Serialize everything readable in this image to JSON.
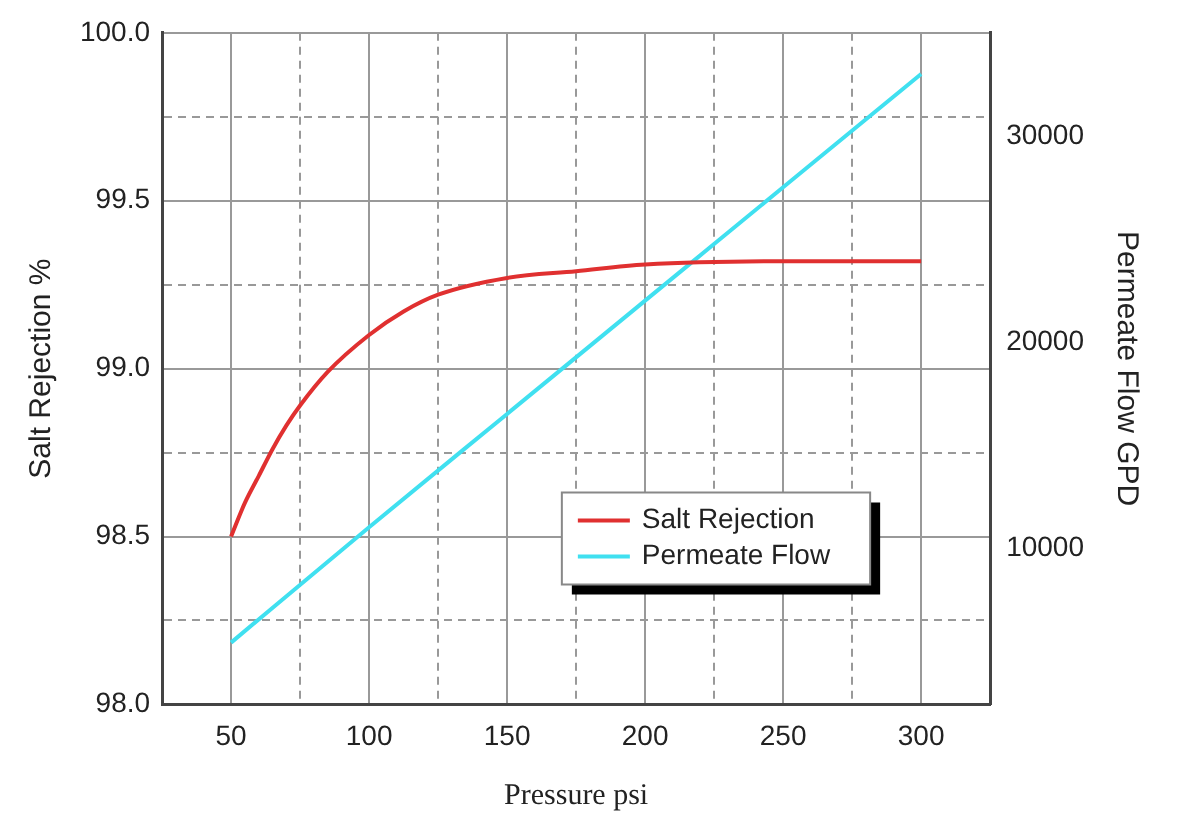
{
  "chart_data": {
    "type": "line",
    "xlabel": "Pressure psi",
    "ylabel": "Salt Rejection %",
    "y2label": "Permeate Flow GPD",
    "xlim": [
      25,
      325
    ],
    "xticks": [
      50,
      {
        "value": 75,
        "label": null
      },
      100,
      {
        "value": 125,
        "label": null
      },
      150,
      {
        "value": 175,
        "label": null
      },
      200,
      {
        "value": 225,
        "label": null
      },
      250,
      {
        "value": 275,
        "label": null
      },
      300
    ],
    "ylim": [
      98.0,
      100.0
    ],
    "yticks": [
      {
        "value": 98,
        "label": "98.0"
      },
      {
        "value": 98.25,
        "label": null
      },
      98.5,
      {
        "value": 98.75,
        "label": null
      },
      {
        "value": 99,
        "label": "99.0"
      },
      {
        "value": 99.25,
        "label": null
      },
      99.5,
      {
        "value": 99.75,
        "label": null
      },
      {
        "value": 100,
        "label": "100.0"
      }
    ],
    "y2lim": [
      2400,
      35000
    ],
    "y2ticks": [
      10000,
      20000,
      30000
    ],
    "series": [
      {
        "name": "Salt Rejection",
        "color": "#e03030",
        "x": [
          50,
          55,
          60,
          65,
          70,
          75,
          85,
          100,
          112.5,
          125,
          150,
          175,
          200,
          250,
          300
        ],
        "values": [
          98.5,
          98.6,
          98.68,
          98.76,
          98.83,
          98.89,
          98.99,
          99.1,
          99.17,
          99.22,
          99.27,
          99.29,
          99.31,
          99.32,
          99.32
        ]
      },
      {
        "name": "Permeate Flow",
        "color": "#40e0f0",
        "axis": "y2",
        "x": [
          50,
          100,
          150,
          200,
          250,
          300
        ],
        "values": [
          5400,
          11000,
          16500,
          22000,
          27500,
          33000
        ]
      }
    ],
    "grid": true,
    "legend": "bottom right",
    "marker": "none",
    "line_style": "solid"
  }
}
